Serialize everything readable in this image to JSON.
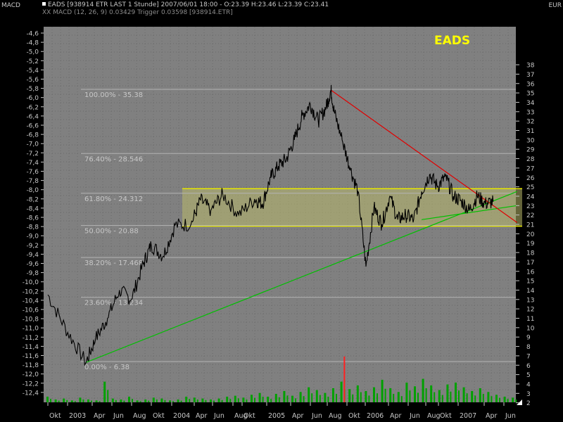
{
  "header": {
    "panel_label": "MACD",
    "currency": "EUR",
    "line1": "EADS [938914 ETR LAST 1 Stunde] 2007/06/01 18:00 - O:23.39 H:23.46 L:23.39 C:23.41",
    "line2": "XX MACD (12, 26, 9) 0.03429 Trigger 0.03598 [938914.ETR]"
  },
  "colors": {
    "background": "#000000",
    "price_line": "#000000",
    "grid": "#7a7a7a",
    "fib_line": "#b4b4b4",
    "fib_text": "#c8c8c8",
    "zone_fill": "#b8b86a",
    "zone_border": "#e6e600",
    "support_line": "#00c000",
    "resistance_line": "#e00000",
    "volume": "#00a000",
    "volume_spike": "#ff2020",
    "axis_text": "#c8c8c8",
    "chart_title": "#ffff00"
  },
  "chart_data": {
    "type": "line",
    "title": "EADS",
    "left_axis": {
      "label": "MACD",
      "ticks": [
        "-4,6",
        "-4,8",
        "-5,0",
        "-5,2",
        "-5,4",
        "-5,6",
        "-5,8",
        "-6,0",
        "-6,2",
        "-6,4",
        "-6,6",
        "-6,8",
        "-7,0",
        "-7,2",
        "-7,4",
        "-7,6",
        "-7,8",
        "-8,0",
        "-8,2",
        "-8,4",
        "-8,6",
        "-8,8",
        "-9,0",
        "-9,2",
        "-9,4",
        "-9,6",
        "-9,8",
        "-10,0",
        "-10,2",
        "-10,4",
        "-10,6",
        "-10,8",
        "-11,0",
        "-11,2",
        "-11,4",
        "-11,6",
        "-11,8",
        "-12,0",
        "-12,2",
        "-12,4"
      ]
    },
    "right_axis": {
      "label": "EUR",
      "ylim": [
        2,
        38
      ],
      "ticks": [
        "38",
        "37",
        "36",
        "35",
        "34",
        "33",
        "32",
        "31",
        "30",
        "29",
        "28",
        "27",
        "26",
        "25",
        "24",
        "23",
        "22",
        "21",
        "20",
        "19",
        "18",
        "17",
        "16",
        "15",
        "14",
        "13",
        "12",
        "11",
        "10",
        "9",
        "8",
        "7",
        "6",
        "5",
        "4",
        "3",
        "2"
      ]
    },
    "x_axis": {
      "ticks": [
        "Okt",
        "2003",
        "Apr",
        "Jun",
        "Aug",
        "Okt",
        "2004",
        "Apr",
        "Jun",
        "Aug",
        "Okt",
        "2005",
        "Apr",
        "Jun",
        "Aug",
        "Okt",
        "2006",
        "Apr",
        "Jun",
        "Aug",
        "Okt",
        "2007",
        "Apr",
        "Jun"
      ]
    },
    "price_series": {
      "name": "EADS",
      "x": [
        0,
        2.5,
        4.8,
        6,
        7.5,
        9,
        10.5,
        12,
        13,
        14.5,
        16,
        18,
        19.2,
        20.5,
        22,
        24,
        26,
        27,
        28,
        29,
        30,
        31,
        32,
        33,
        34,
        35,
        35.6,
        36,
        37,
        38,
        39,
        40,
        41,
        42,
        43,
        44,
        45,
        46,
        47,
        48,
        49,
        50,
        51,
        52,
        53,
        54,
        55,
        56
      ],
      "y": [
        13.5,
        9.5,
        6.3,
        8.8,
        11,
        14,
        13,
        16.8,
        18.8,
        17.6,
        20.9,
        21,
        23.6,
        22.5,
        24.2,
        22,
        23.7,
        23.2,
        26,
        27.2,
        28,
        30,
        32.6,
        33.8,
        32,
        33.5,
        35.3,
        33,
        30,
        27,
        24.5,
        16.5,
        22.8,
        21,
        24,
        21.5,
        22,
        21.5,
        24.5,
        26.3,
        25,
        26.1,
        24,
        23.5,
        22.5,
        24,
        23.2,
        23.41
      ]
    },
    "fib_levels": [
      {
        "label": "100.00% - 35.38",
        "value": 35.38
      },
      {
        "label": "76.40% - 28.546",
        "value": 28.546
      },
      {
        "label": "61.80% - 24.312",
        "value": 24.312
      },
      {
        "label": "50.00% - 20.88",
        "value": 20.88
      },
      {
        "label": "38.20% - 17.468",
        "value": 17.468
      },
      {
        "label": "23.60% - 13.234",
        "value": 13.234
      },
      {
        "label": "0.00% - 6.38",
        "value": 6.38
      }
    ],
    "zone": {
      "top": 24.8,
      "bottom": 20.8
    },
    "support_line": {
      "x": [
        4.8,
        59
      ],
      "y": [
        6.3,
        24.5
      ]
    },
    "support_line_2": {
      "x": [
        47,
        59
      ],
      "y": [
        21.5,
        23
      ]
    },
    "resistance_line": {
      "x": [
        35.6,
        59
      ],
      "y": [
        35.3,
        21.2
      ]
    },
    "volume": {
      "scale_ticks": [
        "2",
        "3",
        "4"
      ],
      "spike": {
        "x": 37.2,
        "value": 9
      },
      "bars": [
        0.6,
        0.3,
        0.4,
        0.2,
        0.5,
        0.3,
        0.2,
        2.2,
        0.4,
        0.3,
        0.6,
        0.2,
        0.3,
        0.5,
        0.4,
        0.2,
        0.3,
        0.6,
        0.5,
        0.4,
        0.3,
        0.4,
        0.6,
        0.7,
        0.5,
        0.8,
        1,
        0.6,
        0.9,
        1.2,
        0.7,
        1.1,
        1.6,
        1.3,
        1,
        1.5,
        2.2,
        1.4,
        1.8,
        1.2,
        1.6,
        2.4,
        1.5,
        1.1,
        2.1,
        1.7,
        2.5,
        1.8,
        1.3,
        1.9,
        2.1,
        1.6,
        1.2,
        1.5,
        1.1,
        0.8,
        0.6,
        0.5
      ]
    }
  }
}
